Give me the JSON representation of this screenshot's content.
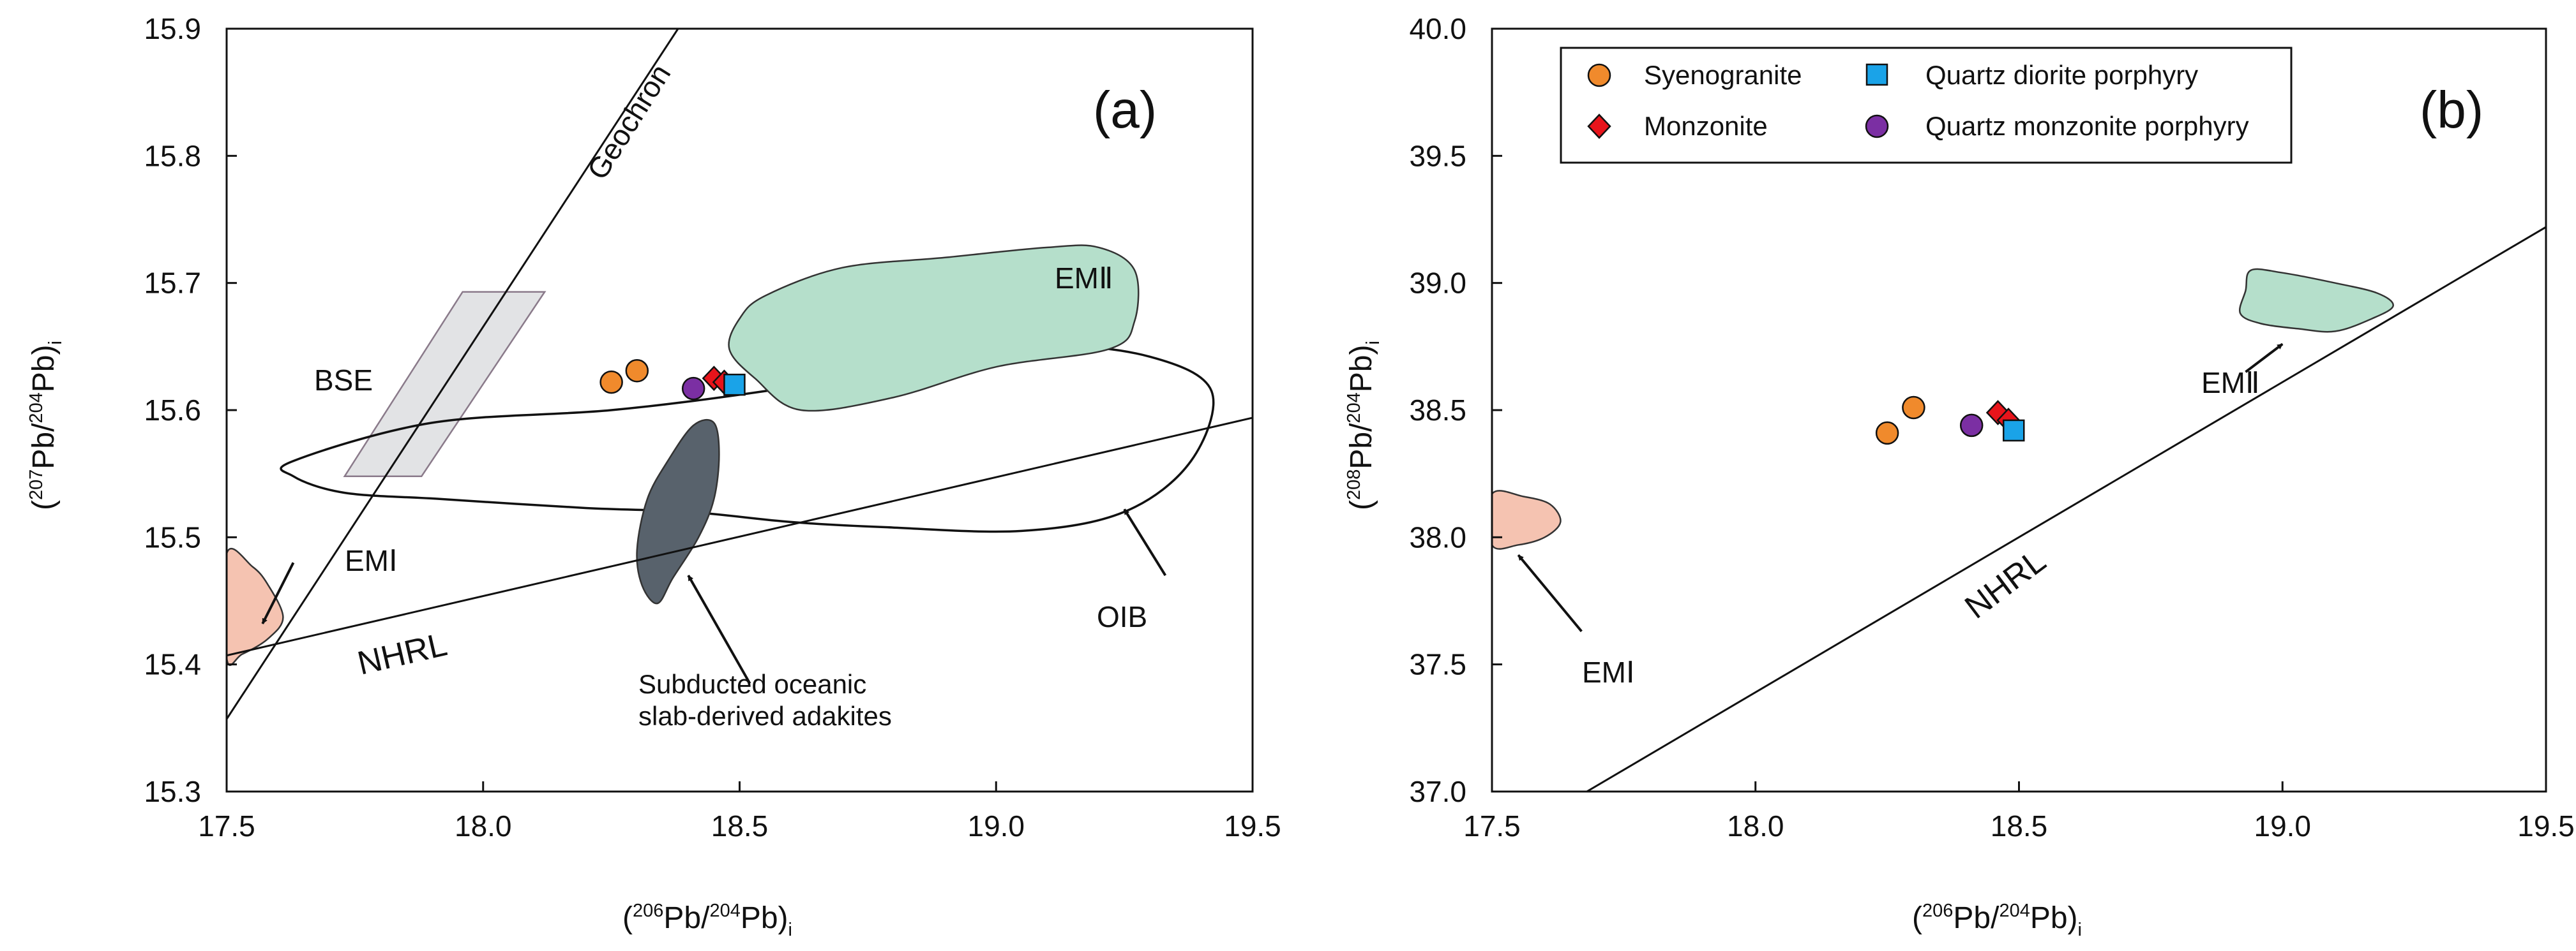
{
  "chart_data": [
    {
      "type": "scatter",
      "panel_label": "(a)",
      "xlabel": {
        "open": "(",
        "sup1": "206",
        "mid": "Pb/",
        "sup2": "204",
        "close": "Pb)",
        "sub": "i"
      },
      "ylabel": {
        "open": "(",
        "sup1": "207",
        "mid": "Pb/",
        "sup2": "204",
        "close": "Pb)",
        "sub": "i"
      },
      "xlim": [
        17.5,
        19.5
      ],
      "ylim": [
        15.3,
        15.9
      ],
      "xticks": [
        "17.5",
        "18.0",
        "18.5",
        "19.0",
        "19.5"
      ],
      "yticks": [
        "15.3",
        "15.4",
        "15.5",
        "15.6",
        "15.7",
        "15.8",
        "15.9"
      ],
      "series": [
        {
          "name": "Syenogranite",
          "marker": "circle",
          "color": "#f08a2c",
          "points": [
            [
              18.25,
              15.622
            ],
            [
              18.3,
              15.631
            ]
          ]
        },
        {
          "name": "Monzonite",
          "marker": "diamond",
          "color": "#e8141b",
          "points": [
            [
              18.45,
              15.625
            ],
            [
              18.47,
              15.622
            ]
          ]
        },
        {
          "name": "Quartz diorite porphyry",
          "marker": "square",
          "color": "#1aa3e8",
          "points": [
            [
              18.49,
              15.62
            ]
          ]
        },
        {
          "name": "Quartz monzonite porphyry",
          "marker": "circle",
          "color": "#7b2fa3",
          "points": [
            [
              18.41,
              15.617
            ]
          ]
        }
      ],
      "lines": [
        {
          "name": "Geochron",
          "label": "Geochron",
          "from": [
            17.5,
            15.357
          ],
          "to": [
            18.38,
            15.9
          ]
        },
        {
          "name": "NHRL",
          "label": "NHRL",
          "from": [
            17.5,
            15.407
          ],
          "to": [
            19.5,
            15.594
          ]
        }
      ],
      "fields": [
        {
          "name": "BSE",
          "label": "BSE",
          "color": "#e2e3e5",
          "outline": "#8a7a8a",
          "vertices": [
            [
              17.73,
              15.548
            ],
            [
              17.88,
              15.548
            ],
            [
              18.12,
              15.693
            ],
            [
              17.96,
              15.693
            ]
          ]
        },
        {
          "name": "EM II",
          "label": "EMⅡ",
          "color": "#b5dfcb",
          "outline": "#333333",
          "vertices": [
            [
              18.55,
              15.69
            ],
            [
              18.7,
              15.712
            ],
            [
              18.9,
              15.72
            ],
            [
              19.1,
              15.728
            ],
            [
              19.2,
              15.728
            ],
            [
              19.27,
              15.71
            ],
            [
              19.27,
              15.67
            ],
            [
              19.22,
              15.648
            ],
            [
              19.0,
              15.634
            ],
            [
              18.8,
              15.61
            ],
            [
              18.62,
              15.6
            ],
            [
              18.53,
              15.625
            ],
            [
              18.48,
              15.648
            ],
            [
              18.5,
              15.672
            ]
          ]
        },
        {
          "name": "OIB",
          "label": "OIB",
          "color": "none",
          "outline": "#111111",
          "vertices": [
            [
              17.63,
              15.56
            ],
            [
              17.9,
              15.59
            ],
            [
              18.25,
              15.6
            ],
            [
              18.55,
              15.615
            ],
            [
              18.85,
              15.635
            ],
            [
              19.1,
              15.65
            ],
            [
              19.3,
              15.642
            ],
            [
              19.42,
              15.615
            ],
            [
              19.38,
              15.56
            ],
            [
              19.25,
              15.52
            ],
            [
              19.05,
              15.505
            ],
            [
              18.78,
              15.508
            ],
            [
              18.6,
              15.512
            ],
            [
              18.4,
              15.52
            ],
            [
              18.2,
              15.523
            ],
            [
              17.92,
              15.53
            ],
            [
              17.73,
              15.535
            ],
            [
              17.63,
              15.548
            ]
          ]
        },
        {
          "name": "Subducted oceanic slab-derived adakites",
          "label": "Subducted oceanic slab-derived adakites",
          "color": "#58626c",
          "outline": "#333333",
          "vertices": [
            [
              18.45,
              15.59
            ],
            [
              18.46,
              15.565
            ],
            [
              18.45,
              15.53
            ],
            [
              18.42,
              15.5
            ],
            [
              18.37,
              15.468
            ],
            [
              18.34,
              15.448
            ],
            [
              18.31,
              15.462
            ],
            [
              18.3,
              15.49
            ],
            [
              18.32,
              15.53
            ],
            [
              18.36,
              15.56
            ],
            [
              18.41,
              15.588
            ]
          ]
        },
        {
          "name": "EM I",
          "label": "EMⅠ",
          "color": "#f5c3b1",
          "outline": "#333333",
          "vertices": [
            [
              17.5,
              15.487
            ],
            [
              17.55,
              15.477
            ],
            [
              17.58,
              15.463
            ],
            [
              17.61,
              15.437
            ],
            [
              17.58,
              15.42
            ],
            [
              17.53,
              15.408
            ],
            [
              17.5,
              15.405
            ]
          ]
        }
      ],
      "annotations": [
        {
          "text": "EMⅠ",
          "arrow_from": [
            17.63,
            15.48
          ],
          "arrow_to": [
            17.57,
            15.432
          ]
        },
        {
          "text": "OIB",
          "arrow_from": [
            19.33,
            15.47
          ],
          "arrow_to": [
            19.25,
            15.522
          ]
        },
        {
          "text": "Subducted oceanic slab-derived adakites",
          "arrow_from": [
            18.52,
            15.385
          ],
          "arrow_to": [
            18.4,
            15.47
          ]
        }
      ],
      "text_labels": {
        "geochron": "Geochron",
        "bse": "BSE",
        "em2": "EMⅡ",
        "em1": "EMⅠ",
        "nhrl": "NHRL",
        "oib": "OIB",
        "adakite_line1": "Subducted oceanic",
        "adakite_line2": "slab-derived adakites"
      }
    },
    {
      "type": "scatter",
      "panel_label": "(b)",
      "xlabel": {
        "open": "(",
        "sup1": "206",
        "mid": "Pb/",
        "sup2": "204",
        "close": "Pb)",
        "sub": "i"
      },
      "ylabel": {
        "open": "(",
        "sup1": "208",
        "mid": "Pb/",
        "sup2": "204",
        "close": "Pb)",
        "sub": "i"
      },
      "xlim": [
        17.5,
        19.5
      ],
      "ylim": [
        37.0,
        40.0
      ],
      "xticks": [
        "17.5",
        "18.0",
        "18.5",
        "19.0",
        "19.5"
      ],
      "yticks": [
        "37.0",
        "37.5",
        "38.0",
        "38.5",
        "39.0",
        "39.5",
        "40.0"
      ],
      "legend_position": "top-left",
      "legend": [
        {
          "name": "Syenogranite",
          "marker": "circle",
          "color": "#f08a2c"
        },
        {
          "name": "Quartz diorite porphyry",
          "marker": "square",
          "color": "#1aa3e8"
        },
        {
          "name": "Monzonite",
          "marker": "diamond",
          "color": "#e8141b"
        },
        {
          "name": "Quartz monzonite porphyry",
          "marker": "circle",
          "color": "#7b2fa3"
        }
      ],
      "series": [
        {
          "name": "Syenogranite",
          "marker": "circle",
          "color": "#f08a2c",
          "points": [
            [
              18.25,
              38.41
            ],
            [
              18.3,
              38.51
            ]
          ]
        },
        {
          "name": "Monzonite",
          "marker": "diamond",
          "color": "#e8141b",
          "points": [
            [
              18.46,
              38.49
            ],
            [
              18.48,
              38.46
            ]
          ]
        },
        {
          "name": "Quartz diorite porphyry",
          "marker": "square",
          "color": "#1aa3e8",
          "points": [
            [
              18.49,
              38.42
            ]
          ]
        },
        {
          "name": "Quartz monzonite porphyry",
          "marker": "circle",
          "color": "#7b2fa3",
          "points": [
            [
              18.41,
              38.44
            ]
          ]
        }
      ],
      "lines": [
        {
          "name": "NHRL",
          "label": "NHRL",
          "from": [
            17.68,
            37.0
          ],
          "to": [
            19.5,
            39.22
          ]
        }
      ],
      "fields": [
        {
          "name": "EM I",
          "label": "EMⅠ",
          "color": "#f5c3b1",
          "outline": "#333333",
          "vertices": [
            [
              17.5,
              38.17
            ],
            [
              17.56,
              38.16
            ],
            [
              17.61,
              38.13
            ],
            [
              17.63,
              38.06
            ],
            [
              17.6,
              38.0
            ],
            [
              17.55,
              37.97
            ],
            [
              17.5,
              37.97
            ]
          ]
        },
        {
          "name": "EM II",
          "label": "EMⅡ",
          "color": "#b5dfcb",
          "outline": "#333333",
          "vertices": [
            [
              18.94,
              39.05
            ],
            [
              19.0,
              39.04
            ],
            [
              19.1,
              39.0
            ],
            [
              19.18,
              38.96
            ],
            [
              19.21,
              38.91
            ],
            [
              19.17,
              38.86
            ],
            [
              19.1,
              38.81
            ],
            [
              19.03,
              38.82
            ],
            [
              18.96,
              38.84
            ],
            [
              18.92,
              38.88
            ],
            [
              18.93,
              38.97
            ]
          ]
        }
      ],
      "annotations": [
        {
          "text": "EMⅠ",
          "arrow_from": [
            17.67,
            37.63
          ],
          "arrow_to": [
            17.55,
            37.93
          ]
        },
        {
          "text": "EMⅡ",
          "arrow_from": [
            18.93,
            38.65
          ],
          "arrow_to": [
            19.0,
            38.76
          ]
        }
      ],
      "text_labels": {
        "em1": "EMⅠ",
        "em2": "EMⅡ",
        "nhrl": "NHRL"
      }
    }
  ]
}
